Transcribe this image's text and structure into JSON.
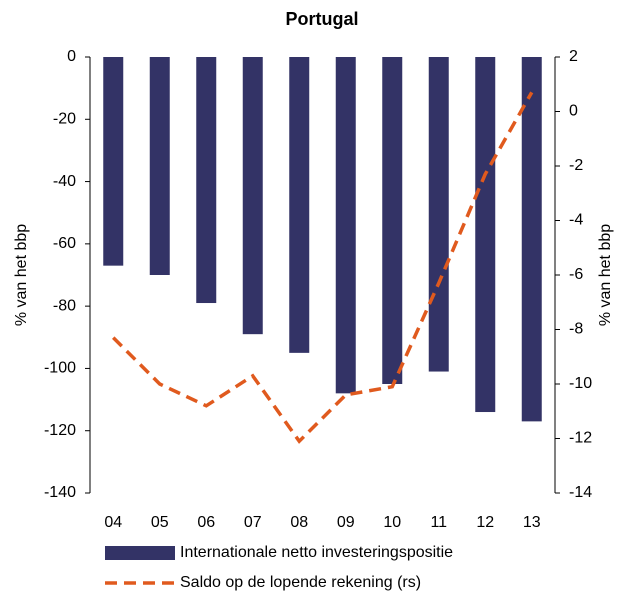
{
  "chart_data": {
    "type": "bar_line",
    "title": "Portugal",
    "ylabel": "% van het bbp",
    "y2label": "% van het bbp",
    "categories": [
      "04",
      "05",
      "06",
      "07",
      "08",
      "09",
      "10",
      "11",
      "12",
      "13"
    ],
    "series": [
      {
        "name": "Internationale netto investeringspositie",
        "color": "#333366",
        "type": "bar",
        "values": [
          -67,
          -70,
          -79,
          -89,
          -95,
          -108,
          -105,
          -101,
          -114,
          -117
        ]
      },
      {
        "name": "Saldo op de lopende rekening (rs)",
        "color": "#e05a1e",
        "type": "line",
        "axis": "y2",
        "values": [
          -8.3,
          -10.0,
          -10.8,
          -9.7,
          -12.1,
          -10.4,
          -10.1,
          -6.3,
          -2.3,
          0.7
        ]
      }
    ],
    "ylim": [
      -140,
      0
    ],
    "yticks": [
      0,
      -20,
      -40,
      -60,
      -80,
      -100,
      -120,
      -140
    ],
    "y2lim": [
      -14,
      2
    ],
    "y2ticks": [
      2,
      0,
      -2,
      -4,
      -6,
      -8,
      -10,
      -12,
      -14
    ]
  }
}
